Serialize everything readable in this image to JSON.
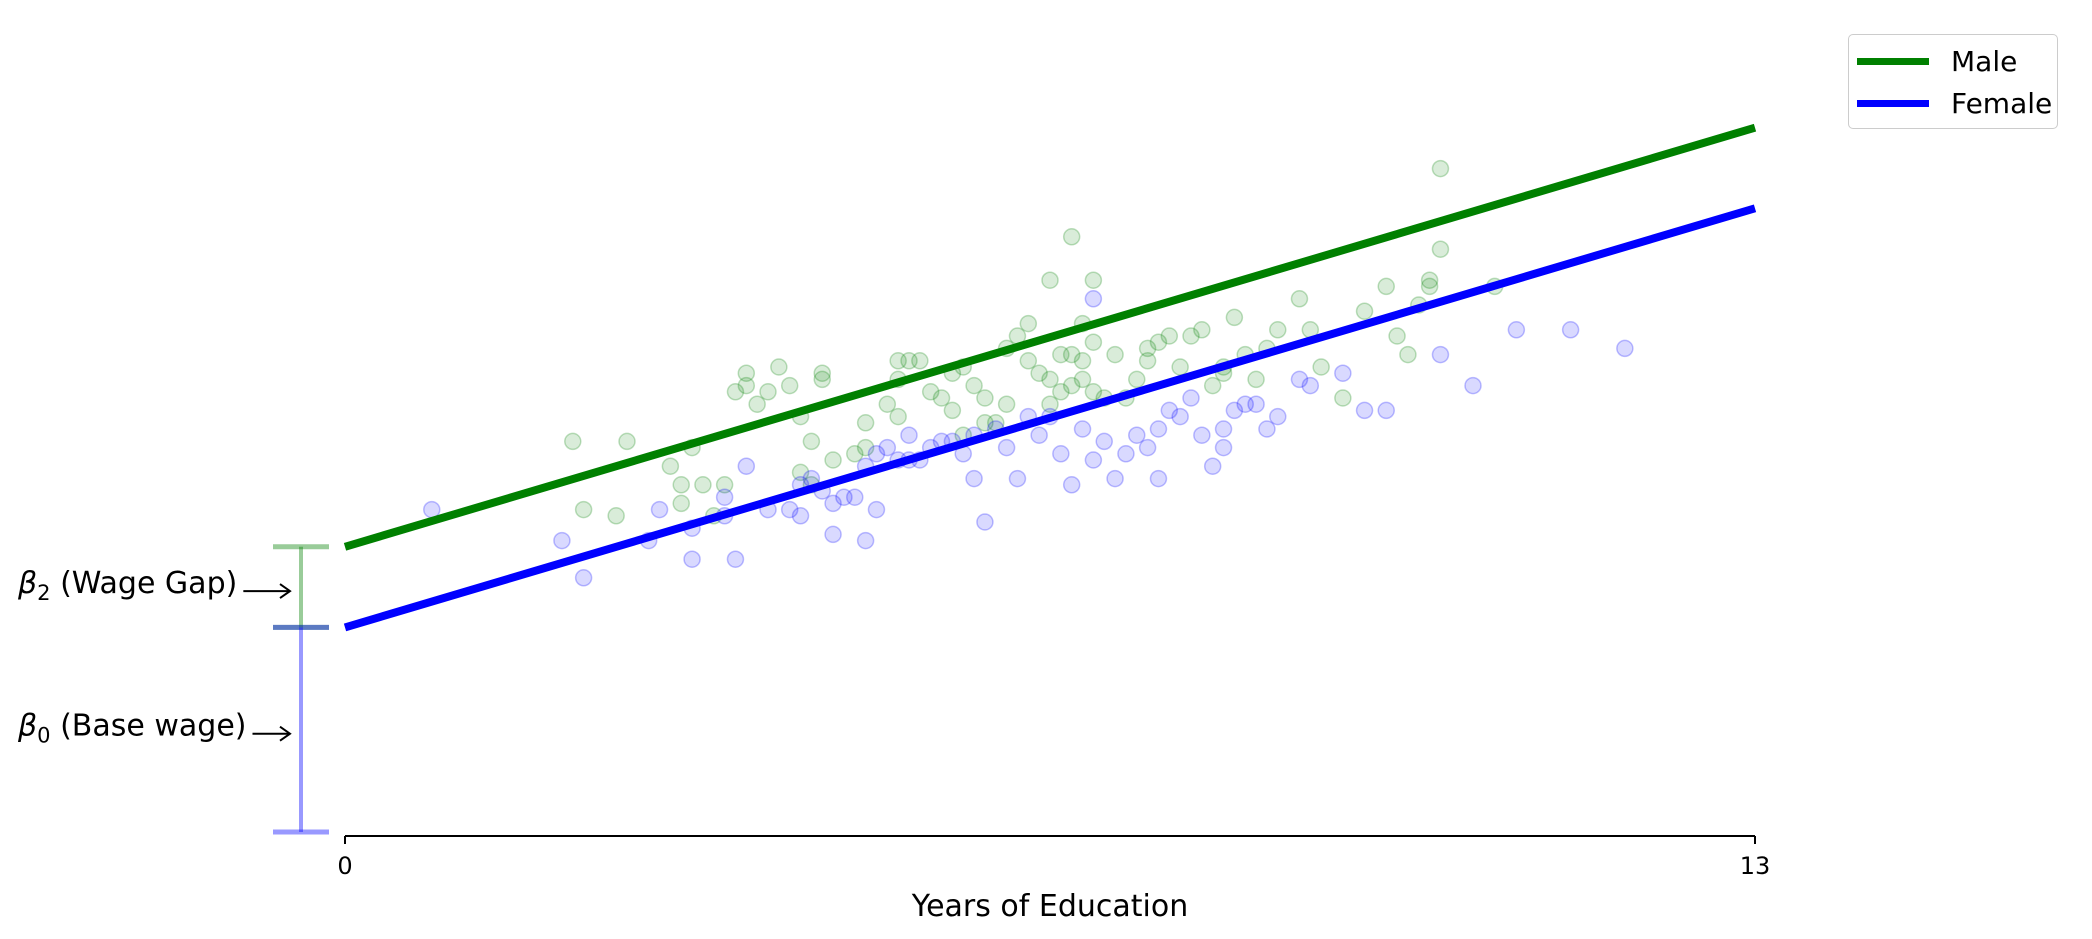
{
  "chart_data": {
    "type": "scatter",
    "xlabel": "Years of Education",
    "ylabel": "",
    "xlim": [
      0,
      13
    ],
    "ylim": [
      -0.2,
      13
    ],
    "x_ticks": [
      0,
      13
    ],
    "x_tick_labels": [
      "0",
      "13"
    ],
    "legend": {
      "position": "top-right",
      "entries": [
        "Male",
        "Female"
      ]
    },
    "grid": false,
    "series": [
      {
        "name": "Male",
        "color": "#008000",
        "line": {
          "intercept": 4.6,
          "slope": 0.52
        },
        "points": [
          [
            2.1,
            6.3
          ],
          [
            2.6,
            6.3
          ],
          [
            2.2,
            5.2
          ],
          [
            2.5,
            5.1
          ],
          [
            3.0,
            5.9
          ],
          [
            3.1,
            5.6
          ],
          [
            3.2,
            6.2
          ],
          [
            3.3,
            5.6
          ],
          [
            3.1,
            5.3
          ],
          [
            3.4,
            5.1
          ],
          [
            3.5,
            5.6
          ],
          [
            3.6,
            7.1
          ],
          [
            3.7,
            7.2
          ],
          [
            3.8,
            6.9
          ],
          [
            3.7,
            7.4
          ],
          [
            3.9,
            7.1
          ],
          [
            4.0,
            7.5
          ],
          [
            4.1,
            7.2
          ],
          [
            4.2,
            6.7
          ],
          [
            4.3,
            6.3
          ],
          [
            4.4,
            7.3
          ],
          [
            4.4,
            7.4
          ],
          [
            4.2,
            5.8
          ],
          [
            4.3,
            5.6
          ],
          [
            4.5,
            6.0
          ],
          [
            4.7,
            6.1
          ],
          [
            4.8,
            6.6
          ],
          [
            4.8,
            6.2
          ],
          [
            5.0,
            6.9
          ],
          [
            5.1,
            7.6
          ],
          [
            5.1,
            7.3
          ],
          [
            5.2,
            7.6
          ],
          [
            5.1,
            6.7
          ],
          [
            5.3,
            7.6
          ],
          [
            5.4,
            7.1
          ],
          [
            5.5,
            7.0
          ],
          [
            5.6,
            7.4
          ],
          [
            5.7,
            7.5
          ],
          [
            5.8,
            7.2
          ],
          [
            5.9,
            7.0
          ],
          [
            5.6,
            6.8
          ],
          [
            5.7,
            6.4
          ],
          [
            5.9,
            6.6
          ],
          [
            6.0,
            6.6
          ],
          [
            6.1,
            6.9
          ],
          [
            6.1,
            7.8
          ],
          [
            6.2,
            8.0
          ],
          [
            6.3,
            8.2
          ],
          [
            6.3,
            7.6
          ],
          [
            6.4,
            7.4
          ],
          [
            6.5,
            6.9
          ],
          [
            6.6,
            7.1
          ],
          [
            6.7,
            7.2
          ],
          [
            6.8,
            7.6
          ],
          [
            6.9,
            7.1
          ],
          [
            6.8,
            7.3
          ],
          [
            7.0,
            7.0
          ],
          [
            7.1,
            7.7
          ],
          [
            7.2,
            7.0
          ],
          [
            7.3,
            7.3
          ],
          [
            7.4,
            7.6
          ],
          [
            7.4,
            7.8
          ],
          [
            7.5,
            7.9
          ],
          [
            7.6,
            8.0
          ],
          [
            7.7,
            7.5
          ],
          [
            7.8,
            8.0
          ],
          [
            7.9,
            8.1
          ],
          [
            8.0,
            7.2
          ],
          [
            8.1,
            7.5
          ],
          [
            8.1,
            7.4
          ],
          [
            8.2,
            8.3
          ],
          [
            8.3,
            7.7
          ],
          [
            8.4,
            7.3
          ],
          [
            8.5,
            7.8
          ],
          [
            8.6,
            8.1
          ],
          [
            8.8,
            8.6
          ],
          [
            8.9,
            8.1
          ],
          [
            9.0,
            7.5
          ],
          [
            9.2,
            7.0
          ],
          [
            9.4,
            8.4
          ],
          [
            9.6,
            8.8
          ],
          [
            9.7,
            8.0
          ],
          [
            9.8,
            7.7
          ],
          [
            9.9,
            8.5
          ],
          [
            10.0,
            8.9
          ],
          [
            10.1,
            9.4
          ],
          [
            10.0,
            8.8
          ],
          [
            10.1,
            10.7
          ],
          [
            10.6,
            8.8
          ],
          [
            6.5,
            8.9
          ],
          [
            6.7,
            9.6
          ],
          [
            6.9,
            8.9
          ],
          [
            6.8,
            8.2
          ],
          [
            6.9,
            7.9
          ],
          [
            6.6,
            7.7
          ],
          [
            6.5,
            7.3
          ],
          [
            6.7,
            7.7
          ]
        ]
      },
      {
        "name": "Female",
        "color": "#0000ff",
        "line": {
          "intercept": 3.3,
          "slope": 0.52
        },
        "points": [
          [
            0.8,
            5.2
          ],
          [
            2.0,
            4.7
          ],
          [
            2.2,
            4.1
          ],
          [
            2.8,
            4.7
          ],
          [
            2.9,
            5.2
          ],
          [
            3.2,
            4.9
          ],
          [
            3.2,
            4.4
          ],
          [
            3.5,
            5.4
          ],
          [
            3.5,
            5.1
          ],
          [
            3.6,
            4.4
          ],
          [
            3.7,
            5.9
          ],
          [
            3.9,
            5.2
          ],
          [
            4.1,
            5.2
          ],
          [
            4.2,
            5.1
          ],
          [
            4.2,
            5.6
          ],
          [
            4.3,
            5.7
          ],
          [
            4.4,
            5.5
          ],
          [
            4.5,
            5.3
          ],
          [
            4.5,
            4.8
          ],
          [
            4.6,
            5.4
          ],
          [
            4.7,
            5.4
          ],
          [
            4.8,
            4.7
          ],
          [
            4.8,
            5.9
          ],
          [
            4.9,
            5.2
          ],
          [
            4.9,
            6.1
          ],
          [
            5.0,
            6.2
          ],
          [
            5.1,
            6.0
          ],
          [
            5.2,
            6.0
          ],
          [
            5.2,
            6.4
          ],
          [
            5.3,
            6.0
          ],
          [
            5.4,
            6.2
          ],
          [
            5.5,
            6.3
          ],
          [
            5.6,
            6.3
          ],
          [
            5.7,
            6.1
          ],
          [
            5.8,
            6.4
          ],
          [
            5.8,
            5.7
          ],
          [
            5.9,
            5.0
          ],
          [
            6.0,
            6.5
          ],
          [
            6.1,
            6.2
          ],
          [
            6.2,
            5.7
          ],
          [
            6.3,
            6.7
          ],
          [
            6.4,
            6.4
          ],
          [
            6.5,
            6.7
          ],
          [
            6.6,
            6.1
          ],
          [
            6.7,
            5.6
          ],
          [
            6.8,
            6.5
          ],
          [
            6.9,
            6.0
          ],
          [
            7.0,
            6.3
          ],
          [
            7.1,
            5.7
          ],
          [
            7.2,
            6.1
          ],
          [
            7.3,
            6.4
          ],
          [
            7.4,
            6.2
          ],
          [
            7.5,
            6.5
          ],
          [
            7.6,
            6.8
          ],
          [
            7.7,
            6.7
          ],
          [
            7.8,
            7.0
          ],
          [
            7.9,
            6.4
          ],
          [
            8.0,
            5.9
          ],
          [
            8.1,
            6.2
          ],
          [
            8.1,
            6.5
          ],
          [
            8.2,
            6.8
          ],
          [
            8.3,
            6.9
          ],
          [
            8.4,
            6.9
          ],
          [
            8.5,
            6.5
          ],
          [
            8.6,
            6.7
          ],
          [
            8.8,
            7.3
          ],
          [
            8.9,
            7.2
          ],
          [
            9.2,
            7.4
          ],
          [
            9.4,
            6.8
          ],
          [
            9.6,
            6.8
          ],
          [
            10.1,
            7.7
          ],
          [
            10.4,
            7.2
          ],
          [
            10.8,
            8.1
          ],
          [
            11.3,
            8.1
          ],
          [
            11.8,
            7.8
          ],
          [
            6.9,
            8.6
          ],
          [
            7.5,
            5.7
          ]
        ]
      }
    ],
    "annotations": [
      {
        "label": "β2 (Wage Gap)",
        "from_y": 3.3,
        "to_y": 4.6,
        "color": "#008000"
      },
      {
        "label": "β0 (Base wage)",
        "from_y": 0,
        "to_y": 3.3,
        "color": "#0000ff"
      }
    ]
  }
}
